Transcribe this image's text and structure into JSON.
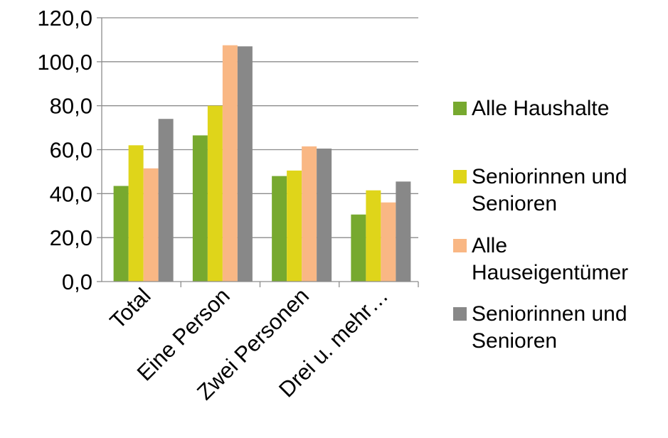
{
  "chart_data": {
    "type": "bar",
    "title": "",
    "xlabel": "",
    "ylabel": "",
    "ylim": [
      0,
      120
    ],
    "yticks": [
      "0,0",
      "20,0",
      "40,0",
      "60,0",
      "80,0",
      "100,0",
      "120,0"
    ],
    "ytick_values": [
      0,
      20,
      40,
      60,
      80,
      100,
      120
    ],
    "grid": true,
    "legend_position": "right",
    "categories": [
      "Total",
      "Eine Person",
      "Zwei Personen",
      "Drei u. mehr…"
    ],
    "series": [
      {
        "name": "Alle Haushalte",
        "legend_lines": [
          "Alle Haushalte"
        ],
        "color": "#77a92f",
        "values": [
          43.5,
          66.5,
          48.0,
          30.5
        ]
      },
      {
        "name": "Seniorinnen und Senioren",
        "legend_lines": [
          "Seniorinnen und",
          "Senioren"
        ],
        "color": "#dfd51a",
        "values": [
          62.0,
          80.0,
          50.5,
          41.5
        ]
      },
      {
        "name": "Alle Hauseigentümer",
        "legend_lines": [
          "Alle",
          "Hauseigentümer"
        ],
        "color": "#f9b784",
        "values": [
          51.5,
          107.5,
          61.5,
          36.0
        ]
      },
      {
        "name": "Seniorinnen und Senioren",
        "legend_lines": [
          "Seniorinnen und",
          "Senioren"
        ],
        "color": "#888888",
        "values": [
          74.0,
          107.0,
          60.5,
          45.5
        ]
      }
    ]
  }
}
